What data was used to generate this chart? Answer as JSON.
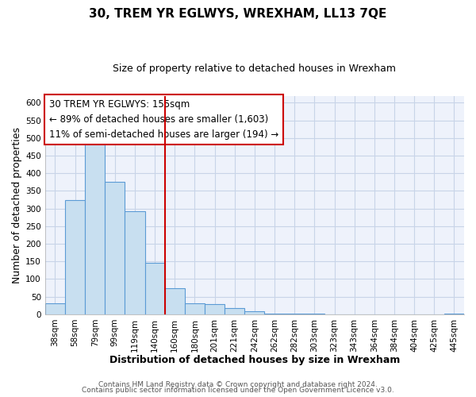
{
  "title": "30, TREM YR EGLWYS, WREXHAM, LL13 7QE",
  "subtitle": "Size of property relative to detached houses in Wrexham",
  "xlabel": "Distribution of detached houses by size in Wrexham",
  "ylabel": "Number of detached properties",
  "bar_color": "#c8dff0",
  "bar_edge_color": "#5b9bd5",
  "plot_bg_color": "#eef2fb",
  "fig_bg_color": "#ffffff",
  "grid_color": "#c8d4e8",
  "bin_labels": [
    "38sqm",
    "58sqm",
    "79sqm",
    "99sqm",
    "119sqm",
    "140sqm",
    "160sqm",
    "180sqm",
    "201sqm",
    "221sqm",
    "242sqm",
    "262sqm",
    "282sqm",
    "303sqm",
    "323sqm",
    "343sqm",
    "364sqm",
    "384sqm",
    "404sqm",
    "425sqm",
    "445sqm"
  ],
  "bar_values": [
    32,
    323,
    483,
    375,
    293,
    145,
    75,
    32,
    29,
    17,
    8,
    2,
    1,
    1,
    0,
    0,
    0,
    0,
    0,
    0,
    1
  ],
  "ylim": [
    0,
    620
  ],
  "yticks": [
    0,
    50,
    100,
    150,
    200,
    250,
    300,
    350,
    400,
    450,
    500,
    550,
    600
  ],
  "vline_x": 6,
  "vline_color": "#cc0000",
  "annotation_title": "30 TREM YR EGLWYS: 155sqm",
  "annotation_line1": "← 89% of detached houses are smaller (1,603)",
  "annotation_line2": "11% of semi-detached houses are larger (194) →",
  "footer_line1": "Contains HM Land Registry data © Crown copyright and database right 2024.",
  "footer_line2": "Contains public sector information licensed under the Open Government Licence v3.0.",
  "title_fontsize": 11,
  "subtitle_fontsize": 9,
  "axis_label_fontsize": 9,
  "tick_fontsize": 7.5,
  "annotation_fontsize": 8.5,
  "footer_fontsize": 6.5
}
